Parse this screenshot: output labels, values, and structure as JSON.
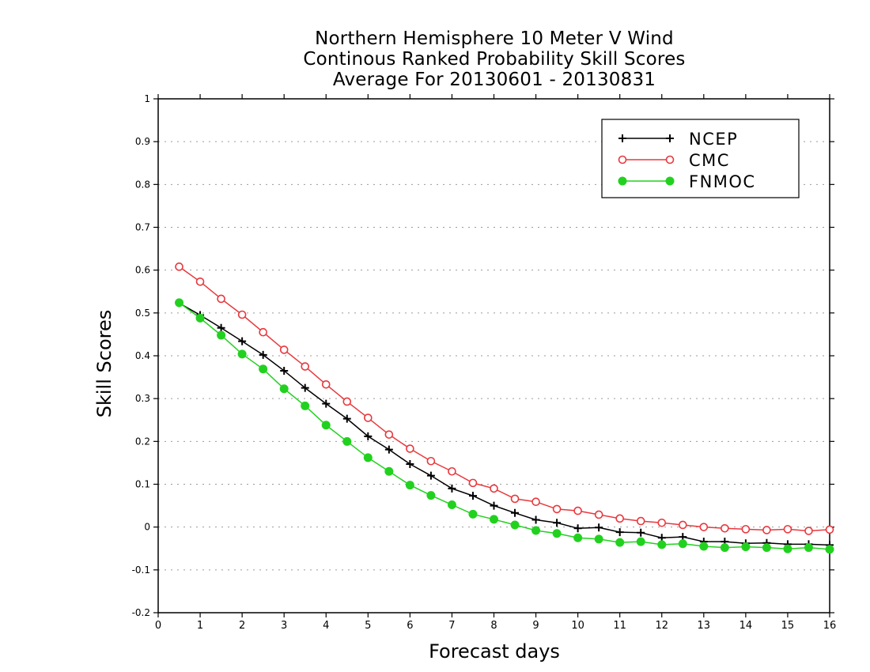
{
  "chart_data": {
    "type": "line",
    "title_lines": [
      "Northern Hemisphere 10 Meter V Wind",
      "Continous Ranked Probability Skill Scores",
      "Average For 20130601 - 20130831"
    ],
    "xlabel": "Forecast days",
    "ylabel": "Skill Scores",
    "xlim": [
      0,
      16
    ],
    "ylim": [
      -0.2,
      1
    ],
    "xticks": [
      "0",
      "1",
      "2",
      "3",
      "4",
      "5",
      "6",
      "7",
      "8",
      "9",
      "10",
      "11",
      "12",
      "13",
      "14",
      "15",
      "16"
    ],
    "yticks": [
      "-0.2",
      "-0.1",
      "0",
      "0.1",
      "0.2",
      "0.3",
      "0.4",
      "0.5",
      "0.6",
      "0.7",
      "0.8",
      "0.9",
      "1"
    ],
    "grid": "horizontal dotted",
    "legend_position": "top-right",
    "x": [
      0.5,
      1,
      1.5,
      2,
      2.5,
      3,
      3.5,
      4,
      4.5,
      5,
      5.5,
      6,
      6.5,
      7,
      7.5,
      8,
      8.5,
      9,
      9.5,
      10,
      10.5,
      11,
      11.5,
      12,
      12.5,
      13,
      13.5,
      14,
      14.5,
      15,
      15.5,
      16
    ],
    "series": [
      {
        "name": "NCEP",
        "color": "#000000",
        "marker": "plus",
        "values": [
          0.523,
          0.495,
          0.465,
          0.434,
          0.402,
          0.365,
          0.325,
          0.288,
          0.253,
          0.212,
          0.181,
          0.147,
          0.12,
          0.09,
          0.073,
          0.05,
          0.033,
          0.017,
          0.01,
          -0.003,
          -0.001,
          -0.012,
          -0.013,
          -0.025,
          -0.023,
          -0.034,
          -0.034,
          -0.038,
          -0.037,
          -0.04,
          -0.04,
          -0.042
        ]
      },
      {
        "name": "CMC",
        "color": "#e8383d",
        "marker": "open-circle",
        "values": [
          0.608,
          0.573,
          0.533,
          0.496,
          0.455,
          0.414,
          0.375,
          0.333,
          0.293,
          0.255,
          0.216,
          0.183,
          0.154,
          0.13,
          0.103,
          0.09,
          0.066,
          0.059,
          0.042,
          0.038,
          0.029,
          0.02,
          0.014,
          0.01,
          0.005,
          0.0,
          -0.003,
          -0.005,
          -0.007,
          -0.005,
          -0.009,
          -0.006
        ]
      },
      {
        "name": "FNMOC",
        "color": "#22d11f",
        "marker": "filled-circle",
        "values": [
          0.524,
          0.488,
          0.448,
          0.404,
          0.369,
          0.323,
          0.283,
          0.238,
          0.2,
          0.162,
          0.13,
          0.098,
          0.074,
          0.052,
          0.03,
          0.018,
          0.005,
          -0.008,
          -0.015,
          -0.025,
          -0.028,
          -0.036,
          -0.034,
          -0.041,
          -0.039,
          -0.045,
          -0.048,
          -0.046,
          -0.048,
          -0.051,
          -0.048,
          -0.052
        ]
      }
    ]
  }
}
